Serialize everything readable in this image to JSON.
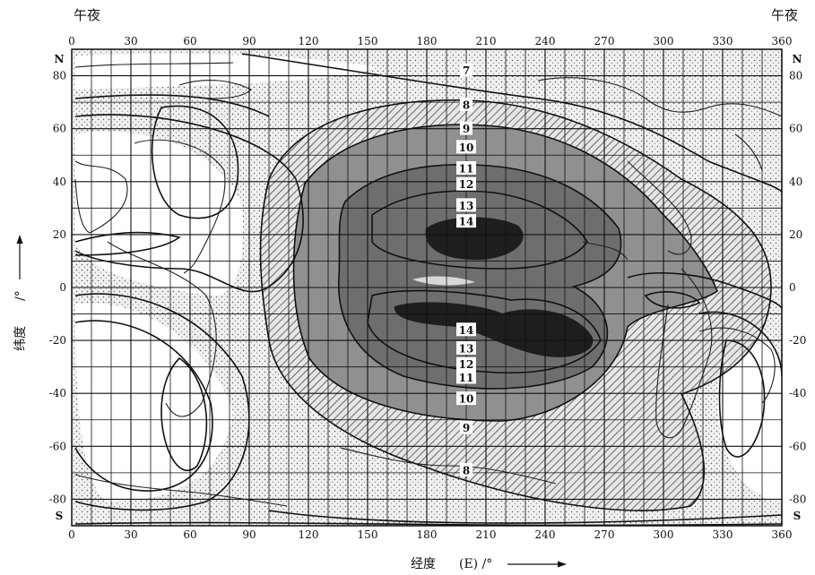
{
  "corner_labels": {
    "left": "午夜",
    "right": "午夜"
  },
  "axes": {
    "x_label": "经度",
    "x_unit": "(E) /°",
    "y_label": "纬度",
    "y_unit": "/°",
    "x_ticks": [
      "0",
      "30",
      "60",
      "90",
      "120",
      "150",
      "180",
      "210",
      "240",
      "270",
      "300",
      "330",
      "360"
    ],
    "y_ticks": [
      "80",
      "60",
      "40",
      "20",
      "0",
      "-20",
      "-40",
      "-60",
      "-80"
    ],
    "north_label": "N",
    "south_label": "S",
    "x_range": [
      0,
      360
    ],
    "y_range": [
      -90,
      90
    ]
  },
  "contour_labels": [
    {
      "text": "7",
      "lon": 200,
      "lat": 82
    },
    {
      "text": "8",
      "lon": 200,
      "lat": 69
    },
    {
      "text": "9",
      "lon": 200,
      "lat": 60
    },
    {
      "text": "10",
      "lon": 200,
      "lat": 53
    },
    {
      "text": "11",
      "lon": 200,
      "lat": 45
    },
    {
      "text": "12",
      "lon": 200,
      "lat": 39
    },
    {
      "text": "13",
      "lon": 200,
      "lat": 31
    },
    {
      "text": "14",
      "lon": 200,
      "lat": 25
    },
    {
      "text": "14",
      "lon": 200,
      "lat": -16
    },
    {
      "text": "13",
      "lon": 200,
      "lat": -23
    },
    {
      "text": "12",
      "lon": 200,
      "lat": -29
    },
    {
      "text": "11",
      "lon": 200,
      "lat": -34
    },
    {
      "text": "10",
      "lon": 200,
      "lat": -42
    },
    {
      "text": "9",
      "lon": 200,
      "lat": -53
    },
    {
      "text": "8",
      "lon": 200,
      "lat": -69
    }
  ],
  "colors": {
    "ink": "#111111",
    "stipple_bg": "#ececec",
    "mid_gray": "#888888",
    "dark_gray": "#707070",
    "core": "#1e1e1e"
  }
}
